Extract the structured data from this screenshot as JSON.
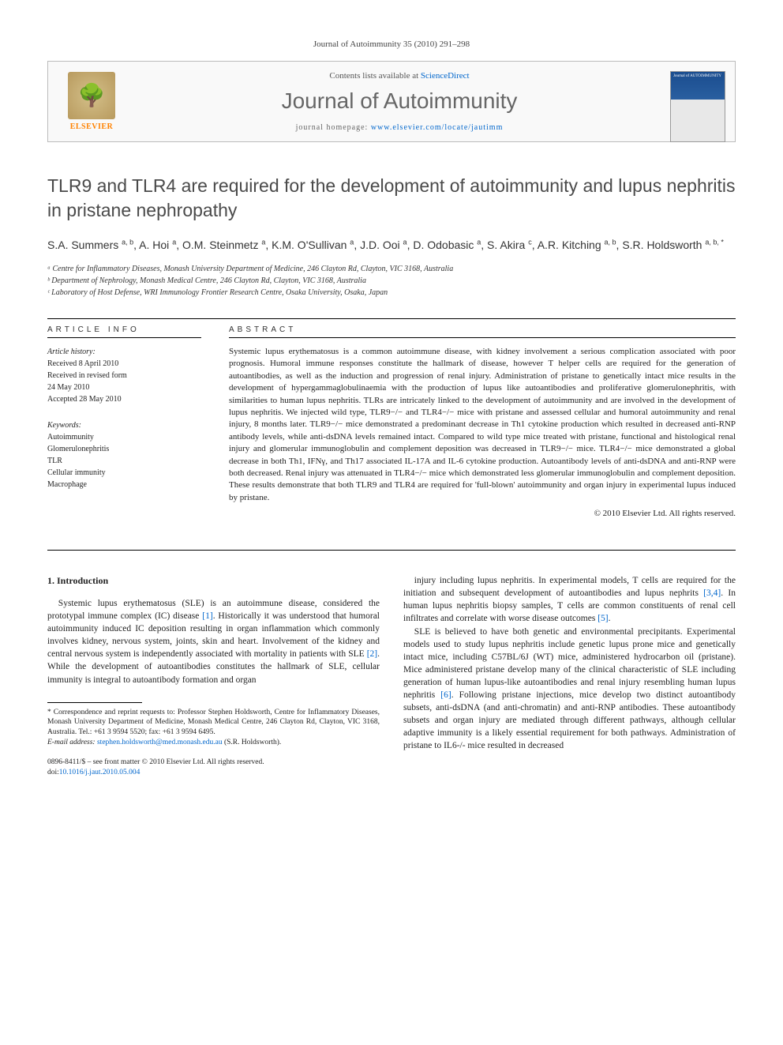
{
  "journal_ref": "Journal of Autoimmunity 35 (2010) 291–298",
  "header": {
    "contents_prefix": "Contents lists available at ",
    "contents_link": "ScienceDirect",
    "journal_name": "Journal of Autoimmunity",
    "homepage_prefix": "journal homepage: ",
    "homepage_url": "www.elsevier.com/locate/jautimm",
    "logo_text": "ELSEVIER",
    "cover_label": "Journal of AUTOIMMUNITY"
  },
  "title": "TLR9 and TLR4 are required for the development of autoimmunity and lupus nephritis in pristane nephropathy",
  "authors_html": "S.A. Summers <sup>a, b</sup>, A. Hoi <sup>a</sup>, O.M. Steinmetz <sup>a</sup>, K.M. O'Sullivan <sup>a</sup>, J.D. Ooi <sup>a</sup>, D. Odobasic <sup>a</sup>, S. Akira <sup>c</sup>, A.R. Kitching <sup>a, b</sup>, S.R. Holdsworth <sup>a, b, *</sup>",
  "affiliations": [
    "ᵃ Centre for Inflammatory Diseases, Monash University Department of Medicine, 246 Clayton Rd, Clayton, VIC 3168, Australia",
    "ᵇ Department of Nephrology, Monash Medical Centre, 246 Clayton Rd, Clayton, VIC 3168, Australia",
    "ᶜ Laboratory of Host Defense, WRI Immunology Frontier Research Centre, Osaka University, Osaka, Japan"
  ],
  "article_info": {
    "heading": "ARTICLE INFO",
    "history_label": "Article history:",
    "history": [
      "Received 8 April 2010",
      "Received in revised form",
      "24 May 2010",
      "Accepted 28 May 2010"
    ],
    "keywords_label": "Keywords:",
    "keywords": [
      "Autoimmunity",
      "Glomerulonephritis",
      "TLR",
      "Cellular immunity",
      "Macrophage"
    ]
  },
  "abstract": {
    "heading": "ABSTRACT",
    "text": "Systemic lupus erythematosus is a common autoimmune disease, with kidney involvement a serious complication associated with poor prognosis. Humoral immune responses constitute the hallmark of disease, however T helper cells are required for the generation of autoantibodies, as well as the induction and progression of renal injury. Administration of pristane to genetically intact mice results in the development of hypergammaglobulinaemia with the production of lupus like autoantibodies and proliferative glomerulonephritis, with similarities to human lupus nephritis. TLRs are intricately linked to the development of autoimmunity and are involved in the development of lupus nephritis. We injected wild type, TLR9−/− and TLR4−/− mice with pristane and assessed cellular and humoral autoimmunity and renal injury, 8 months later. TLR9−/− mice demonstrated a predominant decrease in Th1 cytokine production which resulted in decreased anti-RNP antibody levels, while anti-dsDNA levels remained intact. Compared to wild type mice treated with pristane, functional and histological renal injury and glomerular immunoglobulin and complement deposition was decreased in TLR9−/− mice. TLR4−/− mice demonstrated a global decrease in both Th1, IFNγ, and Th17 associated IL-17A and IL-6 cytokine production. Autoantibody levels of anti-dsDNA and anti-RNP were both decreased. Renal injury was attenuated in TLR4−/− mice which demonstrated less glomerular immunoglobulin and complement deposition. These results demonstrate that both TLR9 and TLR4 are required for 'full-blown' autoimmunity and organ injury in experimental lupus induced by pristane.",
    "copyright": "© 2010 Elsevier Ltd. All rights reserved."
  },
  "intro": {
    "heading": "1. Introduction",
    "col1_p1": "Systemic lupus erythematosus (SLE) is an autoimmune disease, considered the prototypal immune complex (IC) disease [1]. Historically it was understood that humoral autoimmunity induced IC deposition resulting in organ inflammation which commonly involves kidney, nervous system, joints, skin and heart. Involvement of the kidney and central nervous system is independently associated with mortality in patients with SLE [2]. While the development of autoantibodies constitutes the hallmark of SLE, cellular immunity is integral to autoantibody formation and organ",
    "col2_p1": "injury including lupus nephritis. In experimental models, T cells are required for the initiation and subsequent development of autoantibodies and lupus nephrits [3,4]. In human lupus nephritis biopsy samples, T cells are common constituents of renal cell infiltrates and correlate with worse disease outcomes [5].",
    "col2_p2": "SLE is believed to have both genetic and environmental precipitants. Experimental models used to study lupus nephritis include genetic lupus prone mice and genetically intact mice, including C57BL/6J (WT) mice, administered hydrocarbon oil (pristane). Mice administered pristane develop many of the clinical characteristic of SLE including generation of human lupus-like autoantibodies and renal injury resembling human lupus nephritis [6]. Following pristane injections, mice develop two distinct autoantibody subsets, anti-dsDNA (and anti-chromatin) and anti-RNP antibodies. These autoantibody subsets and organ injury are mediated through different pathways, although cellular adaptive immunity is a likely essential requirement for both pathways. Administration of pristane to IL6-/- mice resulted in decreased"
  },
  "footnote": {
    "corr": "* Correspondence and reprint requests to: Professor Stephen Holdsworth, Centre for Inflammatory Diseases, Monash University Department of Medicine, Monash Medical Centre, 246 Clayton Rd, Clayton, VIC 3168, Australia. Tel.: +61 3 9594 5520; fax: +61 3 9594 6495.",
    "email_label": "E-mail address: ",
    "email": "stephen.holdsworth@med.monash.edu.au",
    "email_suffix": " (S.R. Holdsworth)."
  },
  "bottom": {
    "issn": "0896-8411/$ – see front matter © 2010 Elsevier Ltd. All rights reserved.",
    "doi_label": "doi:",
    "doi": "10.1016/j.jaut.2010.05.004"
  }
}
